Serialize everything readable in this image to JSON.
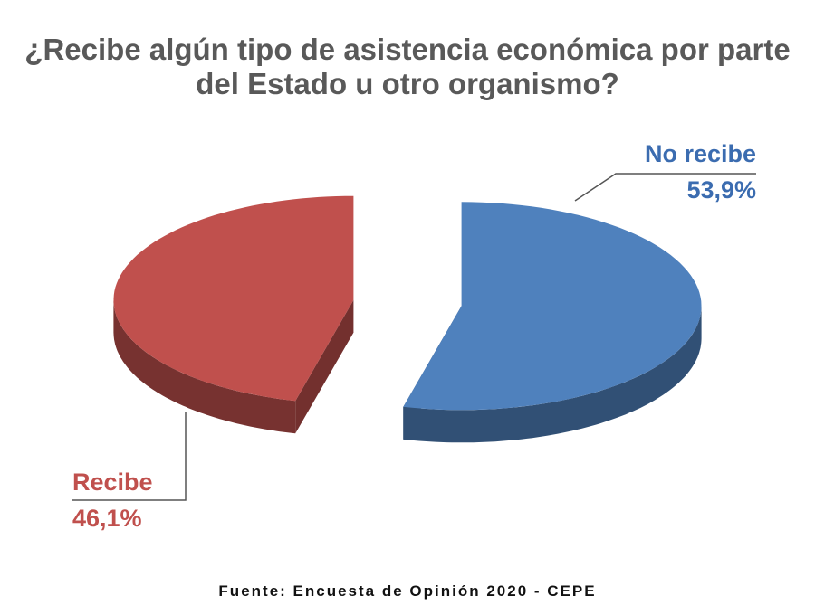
{
  "chart_data": {
    "type": "pie3d",
    "title": "¿Recibe algún tipo de asistencia económica por parte del Estado u otro organismo?",
    "categories": [
      "No recibe",
      "Recibe"
    ],
    "values": [
      53.9,
      46.1
    ],
    "value_labels": [
      "53,9%",
      "46,1%"
    ],
    "colors": [
      "#4f81bd",
      "#c0504d"
    ],
    "source": "Fuente: Encuesta de Opinión 2020 - CEPE"
  }
}
